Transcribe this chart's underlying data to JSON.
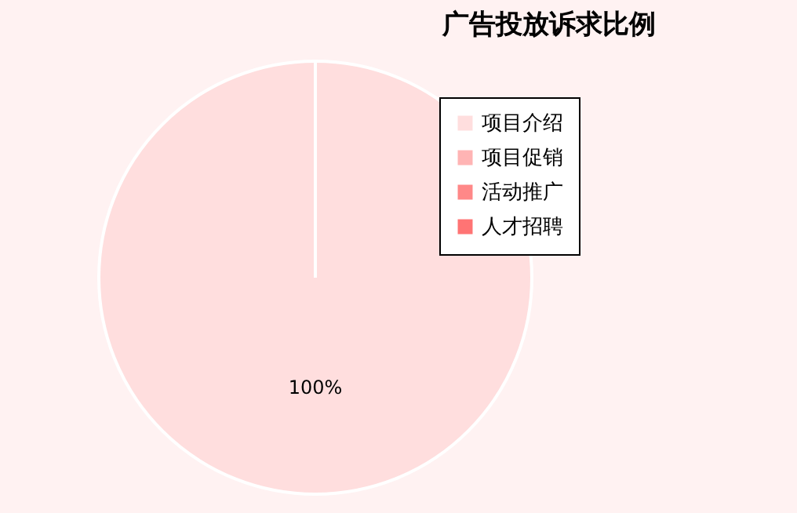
{
  "chart_data": {
    "type": "pie",
    "title": "广告投放诉求比例",
    "categories": [
      "项目介绍",
      "项目促销",
      "活动推广",
      "人才招聘"
    ],
    "values": [
      100,
      0,
      0,
      0
    ],
    "colors": [
      "#ffdede",
      "#ffb4b4",
      "#ff8888",
      "#ff7474"
    ],
    "value_labels": [
      "100%",
      null,
      null,
      null
    ],
    "legend": "top right"
  }
}
